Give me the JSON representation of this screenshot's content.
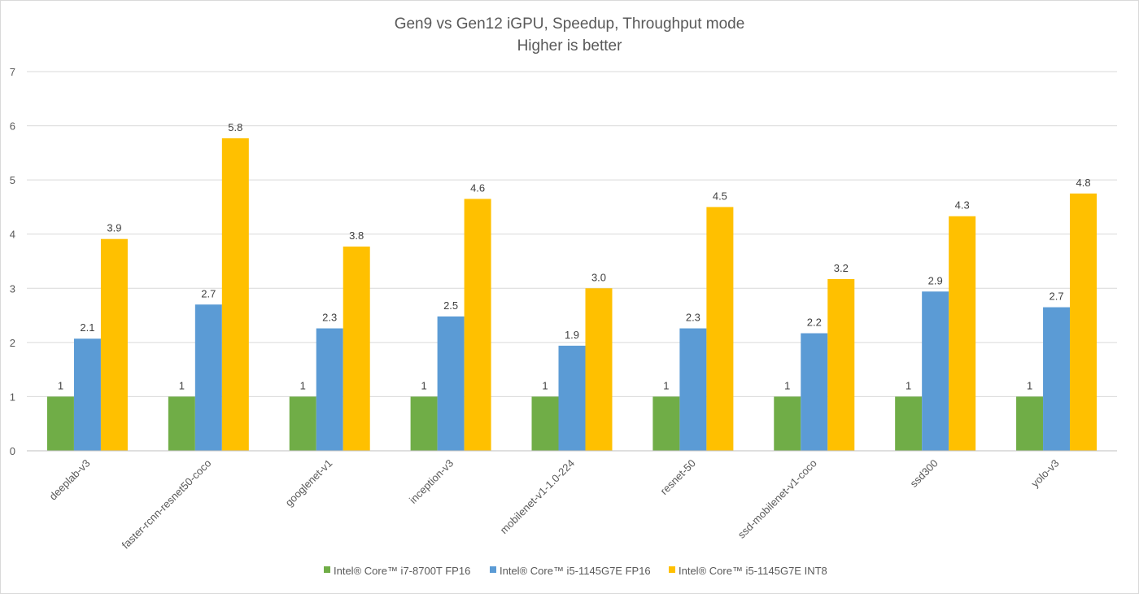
{
  "chart_data": {
    "type": "bar",
    "title": "Gen9 vs Gen12 iGPU, Speedup, Throughput mode",
    "subtitle": "Higher is better",
    "xlabel": "",
    "ylabel": "",
    "ylim": [
      0,
      7
    ],
    "yticks": [
      0,
      1,
      2,
      3,
      4,
      5,
      6,
      7
    ],
    "grid": true,
    "legend_position": "bottom",
    "categories": [
      "deeplab-v3",
      "faster-rcnn-resnet50-coco",
      "googlenet-v1",
      "inception-v3",
      "mobilenet-v1-1.0-224",
      "resnet-50",
      "ssd-mobilenet-v1-coco",
      "ssd300",
      "yolo-v3"
    ],
    "series": [
      {
        "name": "Intel® Core™ i7-8700T FP16",
        "color": "#70ad47",
        "values": [
          1,
          1,
          1,
          1,
          1,
          1,
          1,
          1,
          1
        ],
        "labels": [
          "1",
          "1",
          "1",
          "1",
          "1",
          "1",
          "1",
          "1",
          "1"
        ]
      },
      {
        "name": "Intel® Core™ i5-1145G7E FP16",
        "color": "#5b9bd5",
        "values": [
          2.07,
          2.7,
          2.26,
          2.48,
          1.94,
          2.26,
          2.17,
          2.94,
          2.65
        ],
        "labels": [
          "2.1",
          "2.7",
          "2.3",
          "2.5",
          "1.9",
          "2.3",
          "2.2",
          "2.9",
          "2.7"
        ]
      },
      {
        "name": "Intel® Core™ i5-1145G7E INT8",
        "color": "#ffc000",
        "values": [
          3.91,
          5.77,
          3.77,
          4.65,
          3.0,
          4.5,
          3.17,
          4.33,
          4.75
        ],
        "labels": [
          "3.9",
          "5.8",
          "3.8",
          "4.6",
          "3.0",
          "4.5",
          "3.2",
          "4.3",
          "4.8"
        ]
      }
    ]
  }
}
